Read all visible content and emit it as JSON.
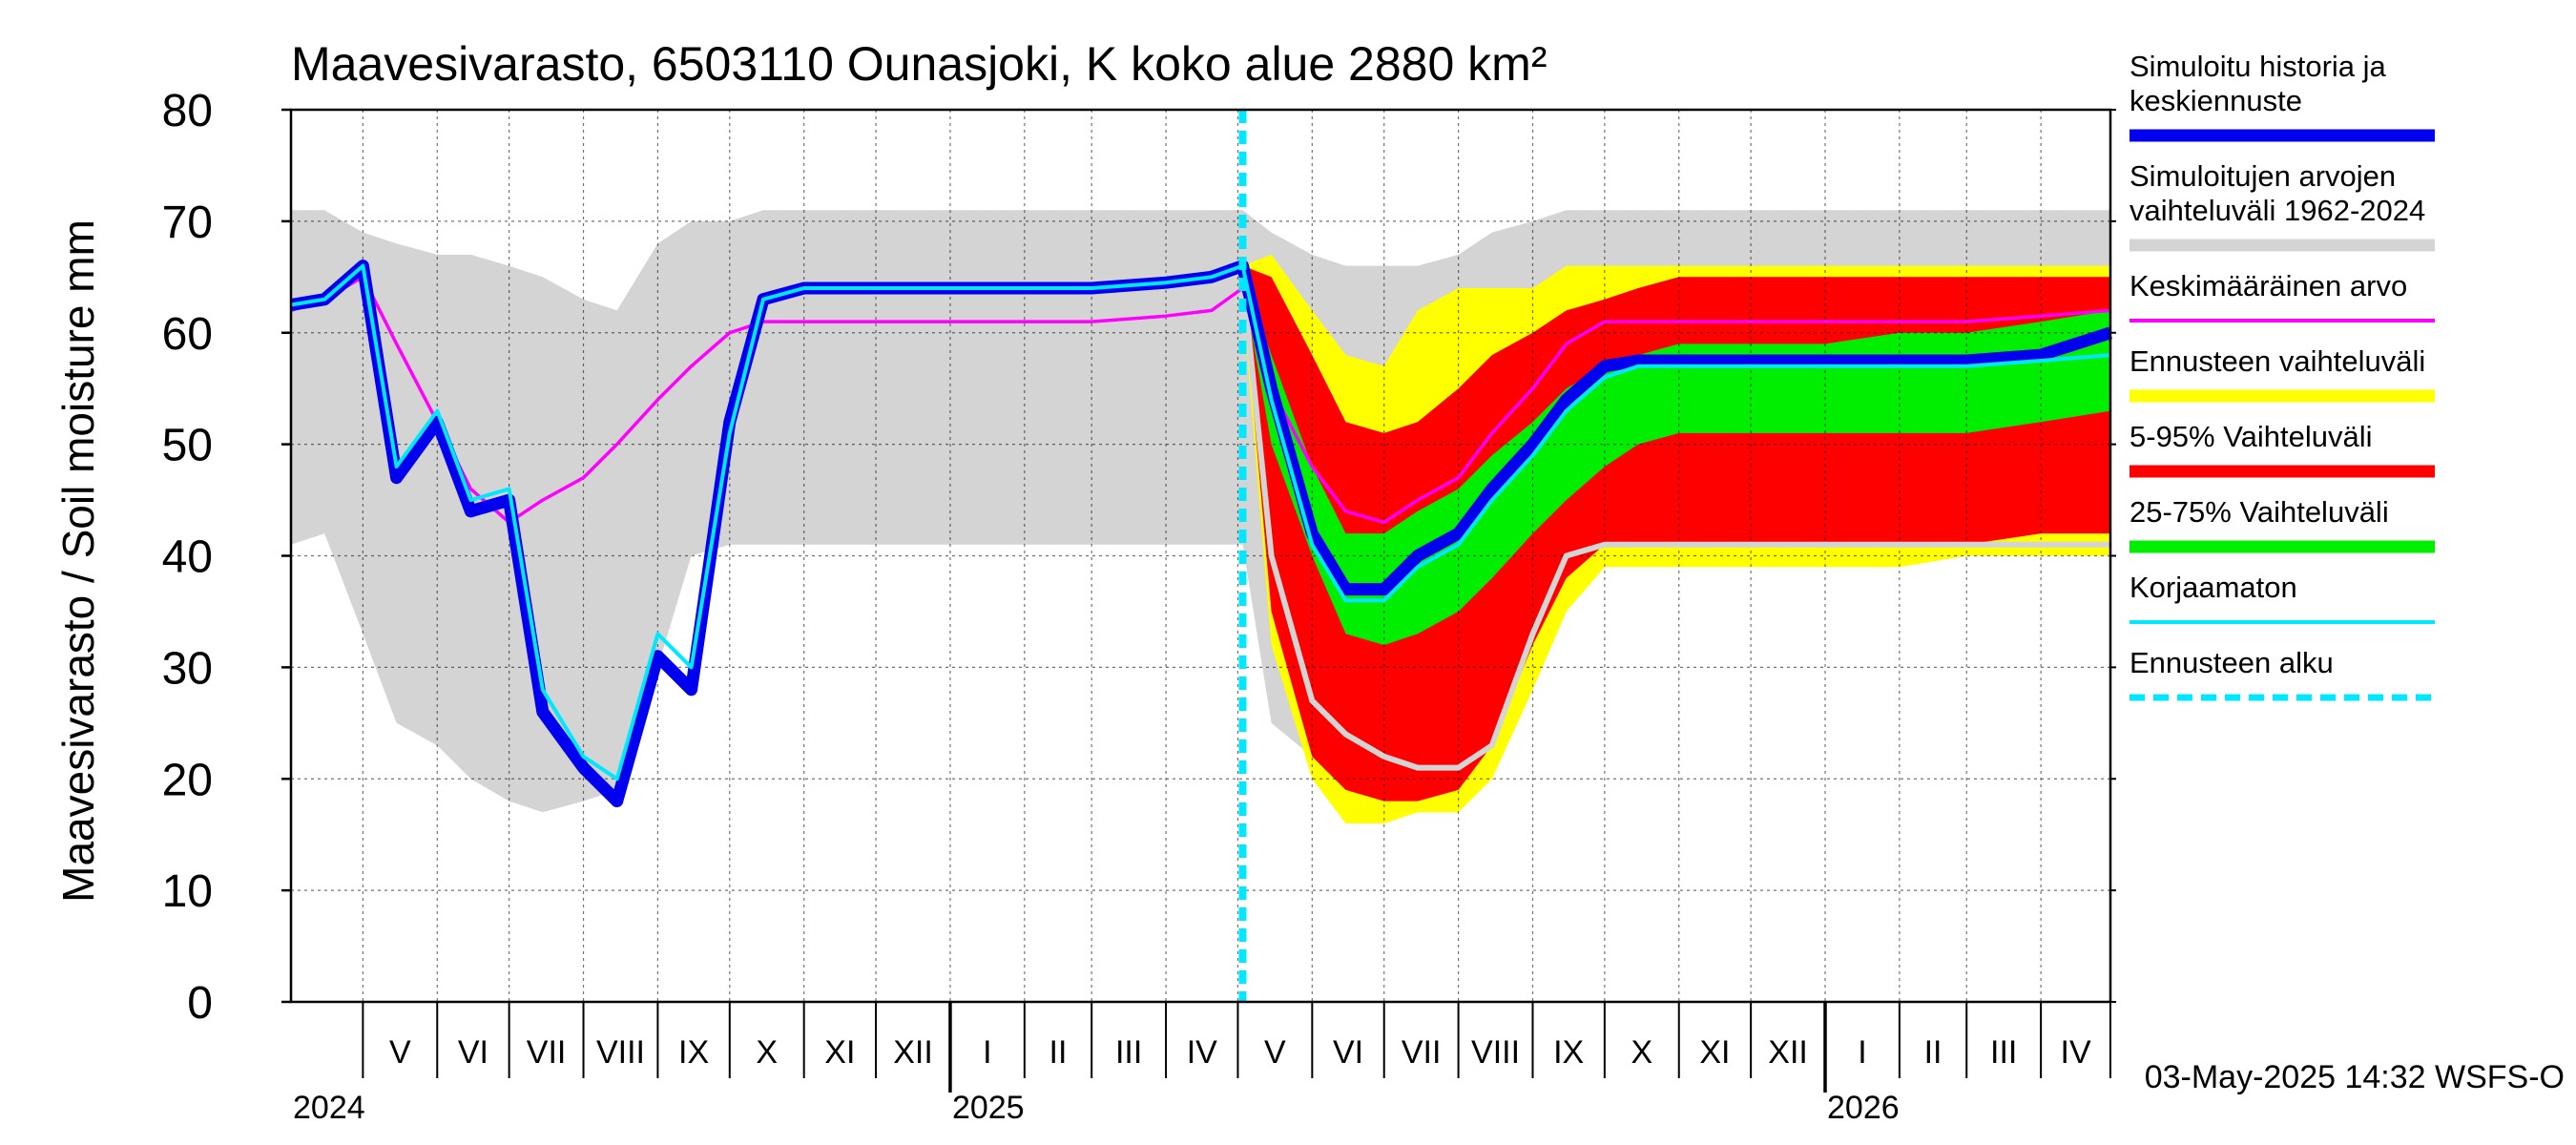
{
  "chart_data": {
    "type": "area",
    "title": "Maavesivarasto, 6503110 Ounasjoki, K koko alue 2880 km²",
    "ylabel": "Maavesivarasto / Soil moisture   mm",
    "ylim": [
      0,
      80
    ],
    "yticks": [
      0,
      10,
      20,
      30,
      40,
      50,
      60,
      70,
      80
    ],
    "xlim": [
      "2024-04-01",
      "2026-04-30"
    ],
    "grid": true,
    "legend_position": "right",
    "forecast_start": "2025-05-03",
    "months": [
      {
        "label": "V",
        "start": "2024-05-01"
      },
      {
        "label": "VI",
        "start": "2024-06-01"
      },
      {
        "label": "VII",
        "start": "2024-07-01"
      },
      {
        "label": "VIII",
        "start": "2024-08-01"
      },
      {
        "label": "IX",
        "start": "2024-09-01"
      },
      {
        "label": "X",
        "start": "2024-10-01"
      },
      {
        "label": "XI",
        "start": "2024-11-01"
      },
      {
        "label": "XII",
        "start": "2024-12-01"
      },
      {
        "label": "I",
        "start": "2025-01-01"
      },
      {
        "label": "II",
        "start": "2025-02-01"
      },
      {
        "label": "III",
        "start": "2025-03-01"
      },
      {
        "label": "IV",
        "start": "2025-04-01"
      },
      {
        "label": "V",
        "start": "2025-05-01"
      },
      {
        "label": "VI",
        "start": "2025-06-01"
      },
      {
        "label": "VII",
        "start": "2025-07-01"
      },
      {
        "label": "VIII",
        "start": "2025-08-01"
      },
      {
        "label": "IX",
        "start": "2025-09-01"
      },
      {
        "label": "X",
        "start": "2025-10-01"
      },
      {
        "label": "XI",
        "start": "2025-11-01"
      },
      {
        "label": "XII",
        "start": "2025-12-01"
      },
      {
        "label": "I",
        "start": "2026-01-01"
      },
      {
        "label": "II",
        "start": "2026-02-01"
      },
      {
        "label": "III",
        "start": "2026-03-01"
      },
      {
        "label": "IV",
        "start": "2026-04-01"
      }
    ],
    "years": [
      {
        "label": "2024",
        "date": "2024-04-01"
      },
      {
        "label": "2025",
        "date": "2025-01-01"
      },
      {
        "label": "2026",
        "date": "2026-01-01"
      }
    ],
    "x": [
      "2024-04-01",
      "2024-04-15",
      "2024-05-01",
      "2024-05-15",
      "2024-06-01",
      "2024-06-15",
      "2024-07-01",
      "2024-07-15",
      "2024-08-01",
      "2024-08-15",
      "2024-09-01",
      "2024-09-15",
      "2024-10-01",
      "2024-10-15",
      "2024-11-01",
      "2024-12-01",
      "2025-01-01",
      "2025-02-01",
      "2025-03-01",
      "2025-04-01",
      "2025-04-20",
      "2025-05-03",
      "2025-05-15",
      "2025-06-01",
      "2025-06-15",
      "2025-07-01",
      "2025-07-15",
      "2025-08-01",
      "2025-08-15",
      "2025-09-01",
      "2025-09-15",
      "2025-10-01",
      "2025-10-15",
      "2025-11-01",
      "2025-12-01",
      "2026-01-01",
      "2026-02-01",
      "2026-03-01",
      "2026-04-01",
      "2026-04-30"
    ],
    "bands": [
      {
        "name": "Simuloitujen arvojen vaihteluväli 1962-2024",
        "color": "#d4d4d4",
        "low": [
          41,
          42,
          33,
          25,
          23,
          20,
          18,
          17,
          18,
          19,
          30,
          40,
          41,
          41,
          41,
          41,
          41,
          41,
          41,
          41,
          41,
          41,
          25,
          22,
          20,
          19,
          19,
          20,
          22,
          28,
          35,
          40,
          41,
          41,
          41,
          41,
          41,
          41,
          41,
          41
        ],
        "high": [
          71,
          71,
          69,
          68,
          67,
          67,
          66,
          65,
          63,
          62,
          68,
          70,
          70,
          71,
          71,
          71,
          71,
          71,
          71,
          71,
          71,
          71,
          69,
          67,
          66,
          66,
          66,
          67,
          69,
          70,
          71,
          71,
          71,
          71,
          71,
          71,
          71,
          71,
          71,
          71
        ]
      },
      {
        "name": "Ennusteen vaihteluväli",
        "color": "#ffff00",
        "low": [
          null,
          null,
          null,
          null,
          null,
          null,
          null,
          null,
          null,
          null,
          null,
          null,
          null,
          null,
          null,
          null,
          null,
          null,
          null,
          null,
          null,
          63,
          32,
          20,
          16,
          16,
          17,
          17,
          20,
          28,
          35,
          39,
          39,
          39,
          39,
          39,
          39,
          40,
          40,
          40
        ],
        "high": [
          null,
          null,
          null,
          null,
          null,
          null,
          null,
          null,
          null,
          null,
          null,
          null,
          null,
          null,
          null,
          null,
          null,
          null,
          null,
          null,
          null,
          66,
          67,
          62,
          58,
          57,
          62,
          64,
          64,
          64,
          66,
          66,
          66,
          66,
          66,
          66,
          66,
          66,
          66,
          66
        ]
      },
      {
        "name": "5-95% Vaihteluväli",
        "color": "#ff0000",
        "low": [
          null,
          null,
          null,
          null,
          null,
          null,
          null,
          null,
          null,
          null,
          null,
          null,
          null,
          null,
          null,
          null,
          null,
          null,
          null,
          null,
          null,
          64,
          35,
          22,
          19,
          18,
          18,
          19,
          23,
          32,
          38,
          41,
          41,
          41,
          41,
          41,
          41,
          41,
          42,
          42
        ],
        "high": [
          null,
          null,
          null,
          null,
          null,
          null,
          null,
          null,
          null,
          null,
          null,
          null,
          null,
          null,
          null,
          null,
          null,
          null,
          null,
          null,
          null,
          66,
          65,
          58,
          52,
          51,
          52,
          55,
          58,
          60,
          62,
          63,
          64,
          65,
          65,
          65,
          65,
          65,
          65,
          65
        ]
      },
      {
        "name": "25-75% Vaihteluväli",
        "color": "#00ee00",
        "low": [
          null,
          null,
          null,
          null,
          null,
          null,
          null,
          null,
          null,
          null,
          null,
          null,
          null,
          null,
          null,
          null,
          null,
          null,
          null,
          null,
          null,
          64.5,
          50,
          40,
          33,
          32,
          33,
          35,
          38,
          42,
          45,
          48,
          50,
          51,
          51,
          51,
          51,
          51,
          52,
          53
        ]
      }
    ],
    "bands_upper": {
      "25-75% Vaihteluväli": [
        null,
        null,
        null,
        null,
        null,
        null,
        null,
        null,
        null,
        null,
        null,
        null,
        null,
        null,
        null,
        null,
        null,
        null,
        null,
        null,
        null,
        65.5,
        58,
        48,
        42,
        42,
        44,
        46,
        49,
        52,
        55,
        57,
        58,
        59,
        59,
        59,
        60,
        60,
        61,
        62
      ]
    },
    "series": [
      {
        "name": "Simuloitu historia ja keskiennuste",
        "color": "#0000ee",
        "values": [
          62.5,
          63,
          66,
          47,
          52,
          44,
          45,
          26,
          21,
          18,
          31,
          28,
          52,
          63,
          64,
          64,
          64,
          64,
          64,
          64.5,
          65,
          66,
          55,
          42,
          37,
          37,
          40,
          42,
          46,
          50,
          54,
          57,
          57.5,
          57.5,
          57.5,
          57.5,
          57.5,
          57.5,
          58,
          60
        ]
      },
      {
        "name": "Keskimääräinen arvo",
        "color": "#ff00ff",
        "values": [
          62,
          63,
          65,
          59,
          52,
          46,
          43,
          45,
          47,
          50,
          54,
          57,
          60,
          61,
          61,
          61,
          61,
          61,
          61,
          61.5,
          62,
          64,
          55,
          48,
          44,
          43,
          45,
          47,
          51,
          55,
          59,
          61,
          61,
          61,
          61,
          61,
          61,
          61,
          61.5,
          62
        ]
      },
      {
        "name": "Korjaamaton",
        "color": "#00e8ff",
        "values": [
          62.5,
          63,
          66,
          48,
          53,
          45,
          46,
          28,
          22,
          20,
          33,
          30,
          51,
          63,
          64,
          64,
          64,
          64,
          64,
          64.5,
          65,
          66,
          54,
          41,
          36,
          36,
          39,
          41,
          45,
          49,
          53,
          56,
          57,
          57,
          57,
          57,
          57,
          57,
          57.5,
          58
        ]
      },
      {
        "name": "",
        "color": "#d4d4d4",
        "values": [
          null,
          null,
          null,
          null,
          null,
          null,
          null,
          null,
          null,
          null,
          null,
          null,
          null,
          null,
          null,
          null,
          null,
          null,
          null,
          null,
          null,
          65,
          40,
          27,
          24,
          22,
          21,
          21,
          23,
          33,
          40,
          41,
          41,
          41,
          41,
          41,
          41,
          41,
          41,
          41
        ]
      }
    ],
    "legend": [
      {
        "label": "Simuloitu historia ja keskiennuste",
        "color": "#0000ee",
        "style": "thick"
      },
      {
        "label": "Simuloitujen arvojen vaihteluväli 1962-2024",
        "color": "#d4d4d4",
        "style": "thick"
      },
      {
        "label": "Keskimääräinen arvo",
        "color": "#ff00ff",
        "style": "thin"
      },
      {
        "label": "Ennusteen vaihteluväli",
        "color": "#ffff00",
        "style": "thick"
      },
      {
        "label": "5-95% Vaihteluväli",
        "color": "#ff0000",
        "style": "thick"
      },
      {
        "label": "25-75% Vaihteluväli",
        "color": "#00ee00",
        "style": "thick"
      },
      {
        "label": "Korjaamaton",
        "color": "#00e8ff",
        "style": "thin"
      },
      {
        "label": "Ennusteen alku",
        "color": "#00e8ff",
        "style": "dashed"
      }
    ],
    "footer": "03-May-2025 14:32 WSFS-O"
  }
}
